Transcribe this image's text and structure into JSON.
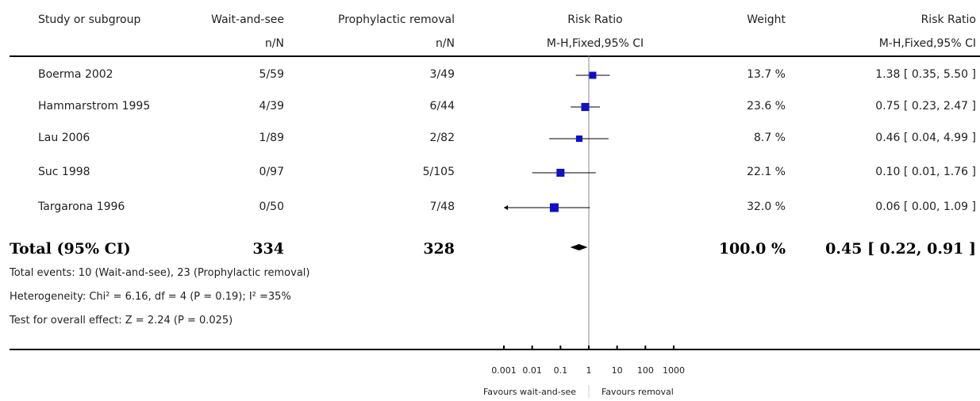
{
  "chart_data": {
    "type": "forest",
    "header": {
      "study_col": "Study or subgroup",
      "group1": "Wait-and-see",
      "group1_sub": "n/N",
      "group2": "Prophylactic removal",
      "group2_sub": "n/N",
      "effect": "Risk Ratio",
      "effect_sub": "M-H,Fixed,95% CI",
      "weight": "Weight",
      "ci": "Risk Ratio",
      "ci_sub": "M-H,Fixed,95% CI"
    },
    "studies": [
      {
        "name": "Boerma 2002",
        "g1": "5/59",
        "g2": "3/49",
        "weight_label": "13.7 %",
        "ci_label": "1.38 [ 0.35, 5.50 ]",
        "rr": 1.38,
        "lo": 0.35,
        "hi": 5.5,
        "w": 13.7
      },
      {
        "name": "Hammarstrom 1995",
        "g1": "4/39",
        "g2": "6/44",
        "weight_label": "23.6 %",
        "ci_label": "0.75 [ 0.23, 2.47 ]",
        "rr": 0.75,
        "lo": 0.23,
        "hi": 2.47,
        "w": 23.6
      },
      {
        "name": "Lau 2006",
        "g1": "1/89",
        "g2": "2/82",
        "weight_label": "8.7 %",
        "ci_label": "0.46 [ 0.04, 4.99 ]",
        "rr": 0.46,
        "lo": 0.04,
        "hi": 4.99,
        "w": 8.7
      },
      {
        "name": "Suc 1998",
        "g1": "0/97",
        "g2": "5/105",
        "weight_label": "22.1 %",
        "ci_label": "0.10 [ 0.01, 1.76 ]",
        "rr": 0.1,
        "lo": 0.01,
        "hi": 1.76,
        "w": 22.1
      },
      {
        "name": "Targarona 1996",
        "g1": "0/50",
        "g2": "7/48",
        "weight_label": "32.0 %",
        "ci_label": "0.06 [ 0.00, 1.09 ]",
        "rr": 0.06,
        "lo": 0.0,
        "hi": 1.09,
        "w": 32.0
      }
    ],
    "total": {
      "name": "Total (95% CI)",
      "g1": "334",
      "g2": "328",
      "weight_label": "100.0 %",
      "ci_label": "0.45 [ 0.22, 0.91 ]",
      "rr": 0.45,
      "lo": 0.22,
      "hi": 0.91
    },
    "notes": [
      "Total events: 10 (Wait-and-see), 23 (Prophylactic removal)",
      "Heterogeneity: Chi² = 6.16, df = 4 (P = 0.19); I² =35%",
      "Test for overall effect: Z = 2.24 (P = 0.025)"
    ],
    "x_axis": {
      "scale": "log",
      "range": [
        0.001,
        1000
      ],
      "ticks": [
        0.001,
        0.01,
        0.1,
        1,
        10,
        100,
        1000
      ],
      "tick_labels": [
        "0.001",
        "0.01",
        "0.1",
        "1",
        "10",
        "100",
        "1000"
      ]
    },
    "favours_left": "Favours wait-and-see",
    "favours_right": "Favours removal",
    "colors": {
      "marker": "#1010c8",
      "line": "#000000"
    }
  }
}
